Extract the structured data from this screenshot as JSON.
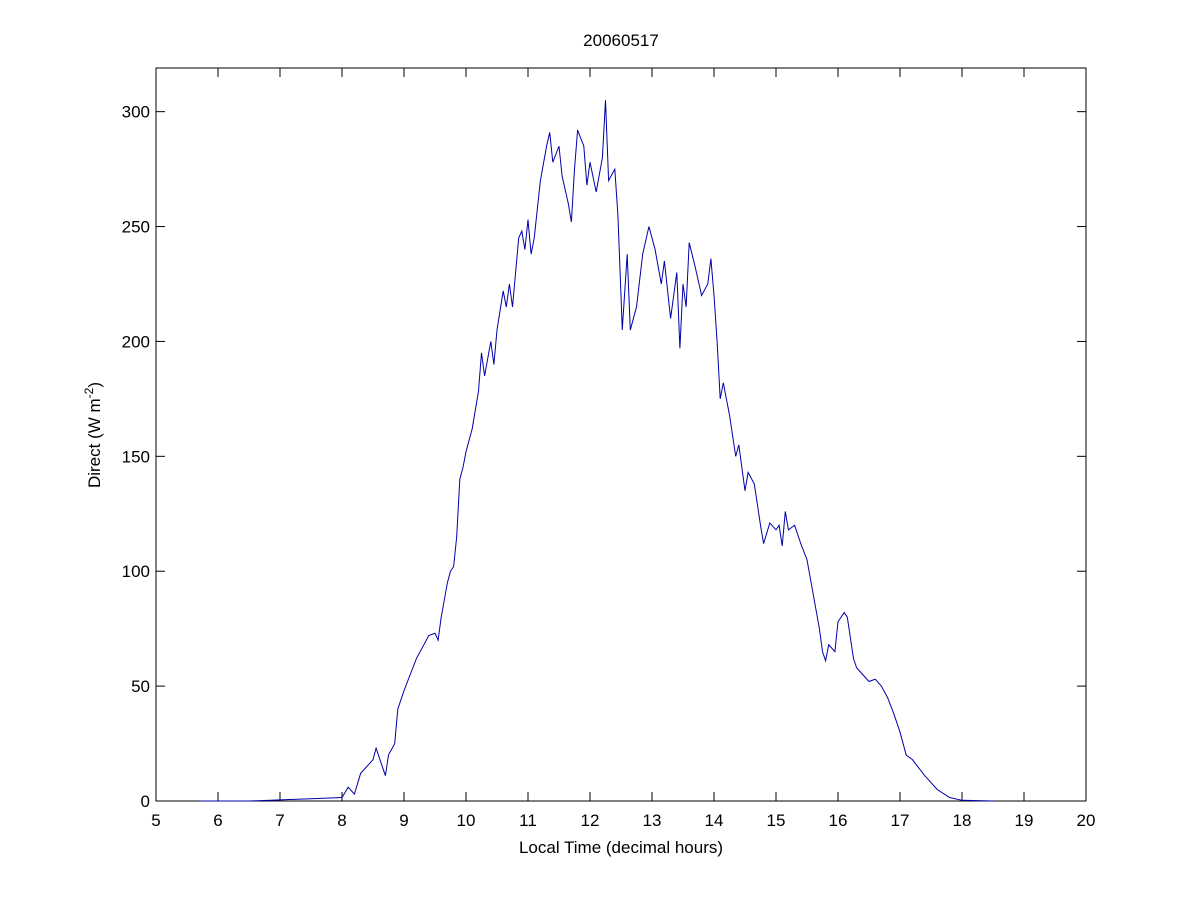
{
  "chart_data": {
    "type": "line",
    "title": "20060517",
    "xlabel": "Local Time (decimal hours)",
    "ylabel_parts": [
      "Direct (W m",
      "-2",
      ")"
    ],
    "xlim": [
      5,
      20
    ],
    "ylim": [
      0,
      319
    ],
    "xticks": [
      5,
      6,
      7,
      8,
      9,
      10,
      11,
      12,
      13,
      14,
      15,
      16,
      17,
      18,
      19,
      20
    ],
    "yticks": [
      0,
      50,
      100,
      150,
      200,
      250,
      300
    ],
    "grid": false,
    "series": [
      {
        "color": "#0000aa",
        "x": [
          5.7,
          6.5,
          7.0,
          7.5,
          8.0,
          8.1,
          8.2,
          8.3,
          8.4,
          8.5,
          8.55,
          8.65,
          8.7,
          8.75,
          8.85,
          8.9,
          9.0,
          9.1,
          9.2,
          9.3,
          9.4,
          9.5,
          9.55,
          9.6,
          9.7,
          9.75,
          9.8,
          9.85,
          9.9,
          9.95,
          10.0,
          10.1,
          10.2,
          10.25,
          10.3,
          10.4,
          10.45,
          10.5,
          10.6,
          10.65,
          10.7,
          10.75,
          10.85,
          10.9,
          10.95,
          11.0,
          11.05,
          11.1,
          11.2,
          11.3,
          11.35,
          11.4,
          11.5,
          11.55,
          11.65,
          11.7,
          11.75,
          11.8,
          11.9,
          11.95,
          12.0,
          12.1,
          12.2,
          12.25,
          12.3,
          12.4,
          12.45,
          12.5,
          12.52,
          12.6,
          12.65,
          12.75,
          12.85,
          12.95,
          13.05,
          13.15,
          13.2,
          13.3,
          13.4,
          13.45,
          13.5,
          13.55,
          13.6,
          13.7,
          13.8,
          13.9,
          13.95,
          14.0,
          14.05,
          14.1,
          14.15,
          14.25,
          14.35,
          14.4,
          14.5,
          14.55,
          14.65,
          14.75,
          14.8,
          14.9,
          15.0,
          15.05,
          15.1,
          15.15,
          15.2,
          15.3,
          15.4,
          15.5,
          15.6,
          15.7,
          15.75,
          15.8,
          15.85,
          15.95,
          16.0,
          16.1,
          16.15,
          16.25,
          16.3,
          16.4,
          16.5,
          16.6,
          16.7,
          16.8,
          16.9,
          17.0,
          17.1,
          17.2,
          17.4,
          17.6,
          17.8,
          18.0,
          18.5
        ],
        "values": [
          0,
          0,
          0.5,
          1,
          1.5,
          6,
          3,
          12,
          15,
          18,
          23,
          15,
          11,
          20,
          25,
          40,
          48,
          55,
          62,
          67,
          72,
          73,
          70,
          80,
          95,
          100,
          102,
          115,
          140,
          145,
          152,
          162,
          178,
          195,
          185,
          200,
          190,
          205,
          222,
          215,
          225,
          215,
          245,
          248,
          240,
          253,
          238,
          245,
          270,
          285,
          291,
          278,
          285,
          272,
          260,
          252,
          275,
          292,
          285,
          268,
          278,
          265,
          280,
          305,
          270,
          275,
          255,
          220,
          205,
          238,
          205,
          215,
          238,
          250,
          240,
          225,
          235,
          210,
          230,
          197,
          225,
          215,
          243,
          232,
          220,
          225,
          236,
          220,
          200,
          175,
          182,
          168,
          150,
          155,
          135,
          143,
          138,
          120,
          112,
          121,
          118,
          120,
          111,
          126,
          118,
          120,
          112,
          105,
          90,
          75,
          65,
          61,
          68,
          65,
          78,
          82,
          80,
          62,
          58,
          55,
          52,
          53,
          50,
          45,
          38,
          30,
          20,
          18,
          11,
          5,
          1.5,
          0.3,
          0
        ]
      }
    ]
  }
}
